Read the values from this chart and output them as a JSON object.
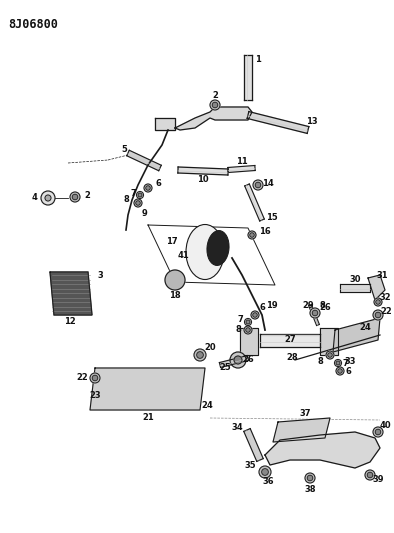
{
  "title": "8J06800",
  "bg_color": "#ffffff",
  "lc": "#1a1a1a",
  "title_fontsize": 8.5,
  "label_fontsize": 6.0,
  "figsize": [
    3.94,
    5.33
  ],
  "dpi": 100
}
